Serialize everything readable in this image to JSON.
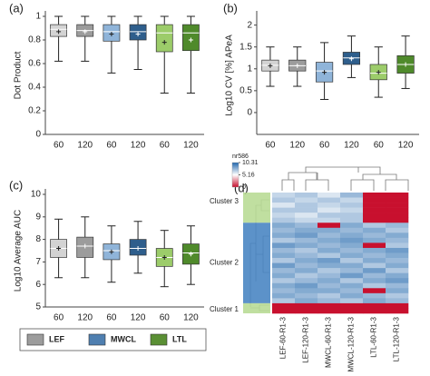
{
  "chart_data": [
    {
      "type": "box",
      "panel": "(a)",
      "ylabel": "Dot Product",
      "categories": [
        "60",
        "120",
        "60",
        "120",
        "60",
        "120"
      ],
      "colors": [
        "#d3d3d3",
        "#9c9c9c",
        "#8fb4d9",
        "#2e5e8c",
        "#9ccc6a",
        "#4f8a2b"
      ],
      "ylim": [
        0,
        1
      ],
      "yticks": [
        0,
        0.2,
        0.4,
        0.6,
        0.8,
        1
      ],
      "boxes": [
        {
          "whislo": 0.62,
          "q1": 0.83,
          "med": 0.89,
          "q3": 0.93,
          "whishi": 1.0,
          "mean": 0.87
        },
        {
          "whislo": 0.62,
          "q1": 0.83,
          "med": 0.88,
          "q3": 0.93,
          "whishi": 1.0,
          "mean": 0.87
        },
        {
          "whislo": 0.52,
          "q1": 0.79,
          "med": 0.87,
          "q3": 0.93,
          "whishi": 1.0,
          "mean": 0.85
        },
        {
          "whislo": 0.55,
          "q1": 0.8,
          "med": 0.87,
          "q3": 0.93,
          "whishi": 1.0,
          "mean": 0.85
        },
        {
          "whislo": 0.35,
          "q1": 0.7,
          "med": 0.86,
          "q3": 0.93,
          "whishi": 1.0,
          "mean": 0.78
        },
        {
          "whislo": 0.35,
          "q1": 0.71,
          "med": 0.86,
          "q3": 0.93,
          "whishi": 1.0,
          "mean": 0.8
        }
      ]
    },
    {
      "type": "box",
      "panel": "(b)",
      "ylabel": "Log10 CV [%] APeA",
      "categories": [
        "60",
        "120",
        "60",
        "120",
        "60",
        "120"
      ],
      "colors": [
        "#d3d3d3",
        "#9c9c9c",
        "#8fb4d9",
        "#2e5e8c",
        "#9ccc6a",
        "#4f8a2b"
      ],
      "ylim": [
        -0.5,
        2.2
      ],
      "yticks": [
        0,
        0.5,
        1,
        1.5,
        2
      ],
      "boxes": [
        {
          "whislo": 0.6,
          "q1": 0.95,
          "med": 1.08,
          "q3": 1.2,
          "whishi": 1.5,
          "mean": 1.07
        },
        {
          "whislo": 0.6,
          "q1": 0.95,
          "med": 1.07,
          "q3": 1.2,
          "whishi": 1.5,
          "mean": 1.07
        },
        {
          "whislo": 0.3,
          "q1": 0.7,
          "med": 0.95,
          "q3": 1.15,
          "whishi": 1.6,
          "mean": 0.92
        },
        {
          "whislo": 0.8,
          "q1": 1.1,
          "med": 1.25,
          "q3": 1.38,
          "whishi": 1.75,
          "mean": 1.23
        },
        {
          "whislo": 0.35,
          "q1": 0.75,
          "med": 0.9,
          "q3": 1.1,
          "whishi": 1.5,
          "mean": 0.92
        },
        {
          "whislo": 0.55,
          "q1": 0.9,
          "med": 1.1,
          "q3": 1.3,
          "whishi": 1.75,
          "mean": 1.1
        }
      ]
    },
    {
      "type": "box",
      "panel": "(c)",
      "ylabel": "Log10 Average AUC",
      "categories": [
        "60",
        "120",
        "60",
        "120",
        "60",
        "120"
      ],
      "colors": [
        "#d3d3d3",
        "#9c9c9c",
        "#8fb4d9",
        "#2e5e8c",
        "#9ccc6a",
        "#4f8a2b"
      ],
      "ylim": [
        5,
        10
      ],
      "yticks": [
        5,
        6,
        7,
        8,
        9,
        10
      ],
      "boxes": [
        {
          "whislo": 6.3,
          "q1": 7.2,
          "med": 7.6,
          "q3": 8.0,
          "whishi": 8.9,
          "mean": 7.6
        },
        {
          "whislo": 6.3,
          "q1": 7.2,
          "med": 7.7,
          "q3": 8.1,
          "whishi": 9.0,
          "mean": 7.7
        },
        {
          "whislo": 6.1,
          "q1": 7.1,
          "med": 7.5,
          "q3": 7.8,
          "whishi": 8.6,
          "mean": 7.45
        },
        {
          "whislo": 6.5,
          "q1": 7.3,
          "med": 7.6,
          "q3": 8.0,
          "whishi": 8.8,
          "mean": 7.6
        },
        {
          "whislo": 5.9,
          "q1": 6.8,
          "med": 7.2,
          "q3": 7.6,
          "whishi": 8.4,
          "mean": 7.2
        },
        {
          "whislo": 6.0,
          "q1": 6.9,
          "med": 7.4,
          "q3": 7.8,
          "whishi": 8.6,
          "mean": 7.35
        }
      ]
    },
    {
      "type": "heatmap",
      "panel": "(d)",
      "columns": [
        "LEF-60-R1-3",
        "LEF-120-R1-3",
        "MWCL-60-R1-3",
        "MWCL-120-R1-3",
        "LTL-60-R1-3",
        "LTL-120-R1-3"
      ],
      "colorbar": {
        "title": "nr586",
        "ticks": [
          10.31,
          5.16,
          0
        ]
      },
      "zlim": [
        0,
        10.31
      ],
      "scale_colors": [
        "#c8102e",
        "#ffffff",
        "#2166ac"
      ],
      "clusters": [
        {
          "label": "Cluster 3",
          "color": "#b5d98f",
          "rows": [
            [
              6.5,
              7,
              6,
              7.5,
              0,
              0
            ],
            [
              7,
              6.5,
              7,
              6.5,
              0,
              0
            ],
            [
              6,
              7,
              6.5,
              7,
              0,
              0
            ],
            [
              7,
              7,
              6,
              6.5,
              0,
              0
            ],
            [
              6.5,
              6,
              7,
              7,
              0,
              0
            ],
            [
              7,
              6.5,
              6.5,
              7,
              0,
              0
            ]
          ]
        },
        {
          "label": "Cluster 2",
          "color": "#3f7fbf",
          "rows": [
            [
              8,
              7.5,
              0,
              8,
              7,
              7.5
            ],
            [
              7.5,
              8,
              8,
              7.5,
              8,
              7
            ],
            [
              8,
              8.5,
              7.5,
              8,
              7.5,
              8
            ],
            [
              7,
              7.5,
              8,
              8.5,
              8,
              7.5
            ],
            [
              8.5,
              8,
              7.5,
              8,
              0,
              7
            ],
            [
              7.5,
              7,
              8,
              7.5,
              8,
              8.5
            ],
            [
              8,
              7.5,
              7,
              8,
              7.5,
              8
            ],
            [
              7,
              8,
              8.5,
              7,
              8,
              7.5
            ],
            [
              8.5,
              7.5,
              8,
              8,
              7,
              8
            ],
            [
              7.5,
              8,
              7,
              7.5,
              8.5,
              7
            ],
            [
              8,
              7,
              7.5,
              8.5,
              7.5,
              8
            ],
            [
              7,
              7.5,
              8,
              7,
              8,
              8.5
            ],
            [
              8,
              8.5,
              7.5,
              8,
              7,
              7.5
            ],
            [
              7.5,
              8,
              8,
              7.5,
              0,
              8
            ],
            [
              8,
              7.5,
              7,
              8,
              7.5,
              7
            ],
            [
              7,
              8,
              7.5,
              7,
              8,
              7.5
            ]
          ]
        },
        {
          "label": "Cluster 1",
          "color": "#b5d98f",
          "rows": [
            [
              0,
              0,
              0,
              0,
              0,
              0
            ],
            [
              0,
              0,
              0,
              0,
              0,
              0
            ]
          ]
        }
      ]
    }
  ],
  "legend": [
    {
      "name": "LEF",
      "color": "#9c9c9c"
    },
    {
      "name": "MWCL",
      "color": "#4f7fb0"
    },
    {
      "name": "LTL",
      "color": "#5a8f34"
    }
  ]
}
